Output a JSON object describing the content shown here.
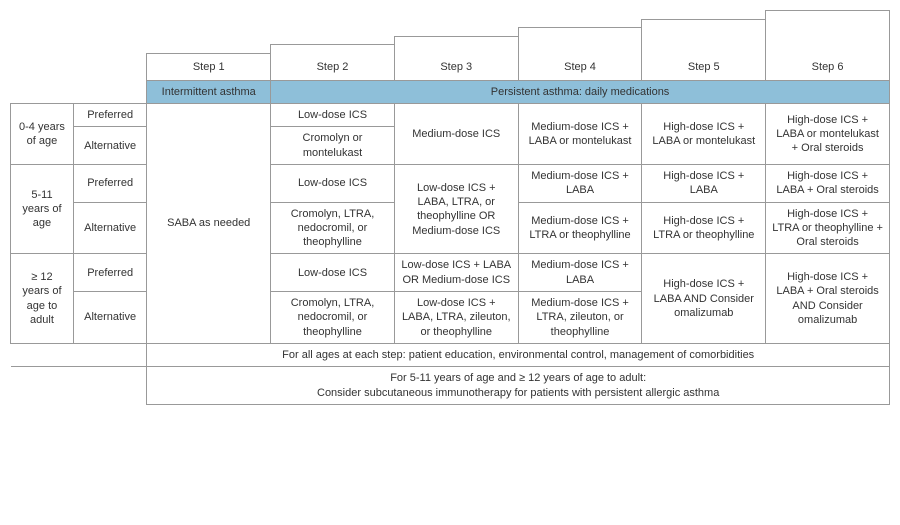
{
  "steps": [
    "Step 1",
    "Step 2",
    "Step 3",
    "Step 4",
    "Step 5",
    "Step 6"
  ],
  "classification": {
    "intermittent": "Intermittent asthma",
    "persistent": "Persistent asthma: daily medications"
  },
  "ages": {
    "g1": "0-4 years of age",
    "g2": "5-11 years of age",
    "g3": "≥ 12 years of age to adult"
  },
  "labels": {
    "preferred": "Preferred",
    "alternative": "Alternative"
  },
  "saba": "SABA as needed",
  "cells": {
    "g1p2": "Low-dose ICS",
    "g1a2": "Cromolyn or montelukast",
    "g1_3": "Medium-dose ICS",
    "g1_4": "Medium-dose ICS + LABA or montelukast",
    "g1_5": "High-dose ICS + LABA or montelukast",
    "g1_6": "High-dose ICS + LABA or montelukast + Oral steroids",
    "g2p2": "Low-dose ICS",
    "g2a2": "Cromolyn, LTRA, nedocromil, or theophylline",
    "g2_3": "Low-dose ICS + LABA, LTRA, or theophylline OR Medium-dose ICS",
    "g2p4": "Medium-dose ICS + LABA",
    "g2a4": "Medium-dose ICS + LTRA or theophylline",
    "g2p5": "High-dose ICS + LABA",
    "g2a5": "High-dose ICS + LTRA or theophylline",
    "g2p6": "High-dose ICS + LABA + Oral steroids",
    "g2a6": "High-dose ICS + LTRA or theophylline + Oral steroids",
    "g3p2": "Low-dose ICS",
    "g3a2": "Cromolyn, LTRA, nedocromil, or theophylline",
    "g3p3": "Low-dose ICS + LABA OR Medium-dose ICS",
    "g3a3": "Low-dose ICS + LABA, LTRA, zileuton, or theophylline",
    "g3p4": "Medium-dose ICS + LABA",
    "g3a4": "Medium-dose ICS + LTRA, zileuton, or theophylline",
    "g3_5": "High-dose ICS + LABA AND Consider omalizumab",
    "g3_6": "High-dose ICS + LABA + Oral steroids AND Consider omalizumab"
  },
  "footers": {
    "f1": "For all ages at each step: patient education, environmental control, management of comorbidities",
    "f2a": "For 5-11 years of age and ≥ 12 years of age to adult:",
    "f2b": "Consider subcutaneous immunotherapy for patients with persistent allergic asthma"
  },
  "colors": {
    "headerBlue": "#8ebfd9",
    "border": "#999999",
    "text": "#333333"
  }
}
